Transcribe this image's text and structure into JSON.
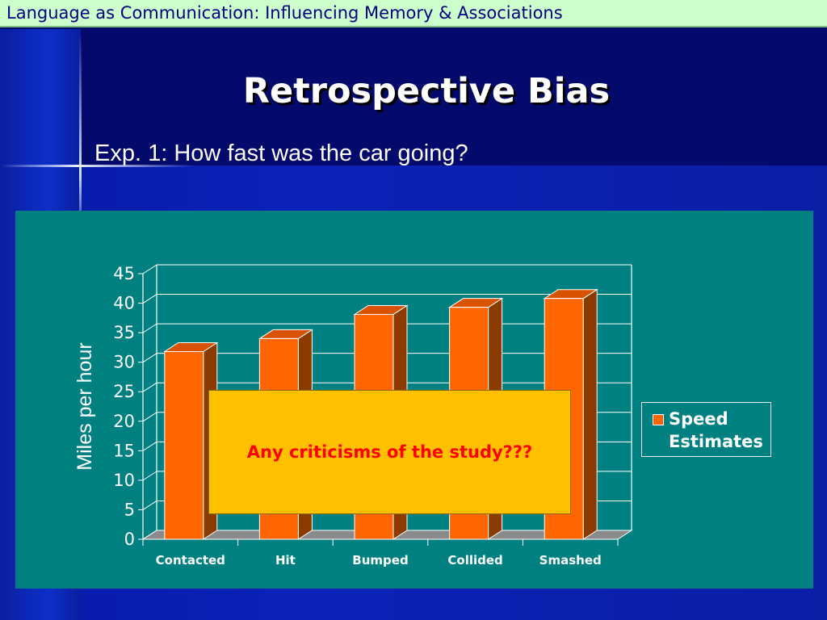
{
  "header": {
    "text": "Language as Communication: Influencing Memory & Associations"
  },
  "slide": {
    "title": "Retrospective Bias",
    "subtitle": "Exp. 1:  How fast was the car going?"
  },
  "overlay": {
    "text": "Any criticisms of the study???"
  },
  "colors": {
    "background": "#030a6b",
    "header_bg": "#ccffcc",
    "header_text": "#000080",
    "chart_bg": "#008080",
    "bar_front": "#ff6600",
    "bar_side": "#8b3a00",
    "overlay_bg": "#ffc000",
    "overlay_text": "#ff0000"
  },
  "chart_data": {
    "type": "bar",
    "categories": [
      "Contacted",
      "Hit",
      "Bumped",
      "Collided",
      "Smashed"
    ],
    "series": [
      {
        "name": "Speed Estimates",
        "values": [
          31.8,
          34.0,
          38.1,
          39.3,
          40.8
        ]
      }
    ],
    "ylabel": "Miles per hour",
    "xlabel": "",
    "ylim": [
      0,
      45
    ],
    "yticks": [
      0,
      5,
      10,
      15,
      20,
      25,
      30,
      35,
      40,
      45
    ],
    "grid": true,
    "legend": {
      "position": "right",
      "label_lines": [
        "Speed",
        "Estimates"
      ]
    },
    "style": "3d"
  }
}
